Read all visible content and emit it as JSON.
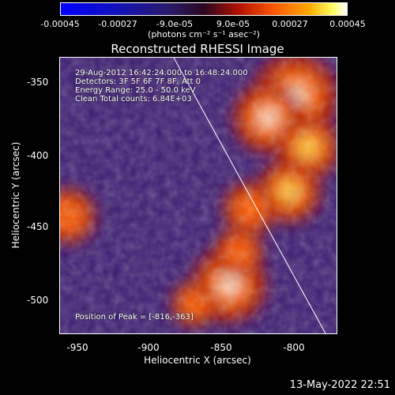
{
  "colorbar": {
    "ticks": [
      "-0.00045",
      "-0.00027",
      "-9.0e-05",
      "9.0e-05",
      "0.00027",
      "0.00045"
    ],
    "units": "(photons cm⁻² s⁻¹ asec⁻²)",
    "min": -0.00045,
    "max": 0.00045
  },
  "info": {
    "time": "29-Aug-2012 16:42:24.000 to 16:48:24.000",
    "detectors": "Detectors: 3F 5F 6F 7F 8F, Att 0",
    "energy": "Energy Range: 25.0 - 50.0 keV",
    "clean": "Clean     Total counts: 6.84E+03",
    "peak": "Position of Peak = [-816,-363]"
  },
  "timestamp": "13-May-2022 22:51",
  "chart_data": {
    "type": "heatmap",
    "title": "Reconstructed RHESSI Image",
    "xlabel": "Heliocentric X (arcsec)",
    "ylabel": "Heliocentric Y (arcsec)",
    "xlim": [
      -965,
      -790
    ],
    "ylim": [
      -525,
      -337
    ],
    "x_ticks": [
      "-950",
      "-900",
      "-850",
      "-800"
    ],
    "y_ticks": [
      "-350",
      "-400",
      "-450",
      "-500"
    ],
    "x_tick_values": [
      -950,
      -900,
      -850,
      -800
    ],
    "y_tick_values": [
      -350,
      -400,
      -450,
      -500
    ],
    "colorscale": [
      "#0000ff",
      "#2a1a6a",
      "#3b1a72",
      "#b01000",
      "#ff5a00",
      "#ffaa00",
      "#ffff60",
      "#ffffff"
    ],
    "sources": [
      {
        "x": -816,
        "y": -363,
        "intensity": 0.00045
      },
      {
        "x": -833,
        "y": -378,
        "intensity": 0.00033
      },
      {
        "x": -808,
        "y": -398,
        "intensity": 0.00027
      },
      {
        "x": -820,
        "y": -428,
        "intensity": 0.00027
      },
      {
        "x": -845,
        "y": -440,
        "intensity": 0.00018
      },
      {
        "x": -858,
        "y": -492,
        "intensity": 0.00036
      },
      {
        "x": -852,
        "y": -470,
        "intensity": 0.00015
      },
      {
        "x": -960,
        "y": -445,
        "intensity": 0.0002
      },
      {
        "x": -880,
        "y": -505,
        "intensity": 0.00012
      }
    ],
    "limb_line": [
      [
        -893,
        -337
      ],
      [
        -797,
        -525
      ]
    ],
    "peak": [
      -816,
      -363
    ]
  }
}
